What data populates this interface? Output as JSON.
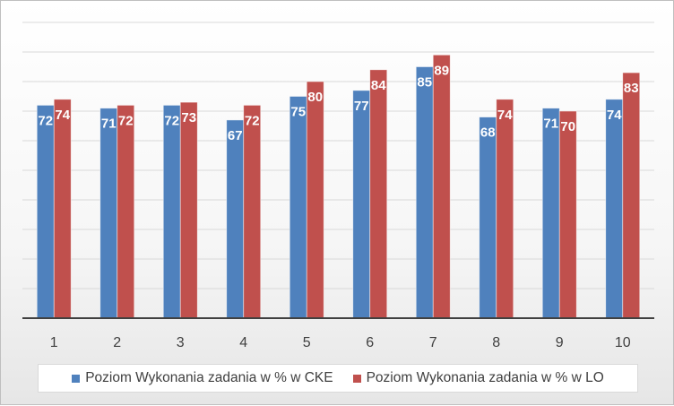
{
  "chart_data": {
    "type": "bar",
    "categories": [
      "1",
      "2",
      "3",
      "4",
      "5",
      "6",
      "7",
      "8",
      "9",
      "10"
    ],
    "series": [
      {
        "name": "Poziom Wykonania zadania w % w CKE",
        "color": "#4f81bd",
        "values": [
          72,
          71,
          72,
          67,
          75,
          77,
          85,
          68,
          71,
          74
        ]
      },
      {
        "name": "Poziom Wykonania zadania w % w LO",
        "color": "#c0504d",
        "values": [
          74,
          72,
          73,
          72,
          80,
          84,
          89,
          74,
          70,
          83
        ]
      }
    ],
    "ylim": [
      0,
      100
    ],
    "y_gridlines": 10,
    "legend_position": "bottom",
    "grid": true
  }
}
